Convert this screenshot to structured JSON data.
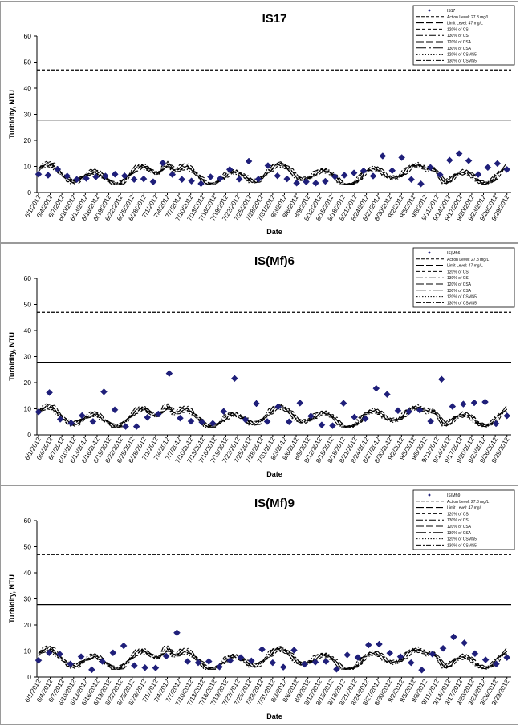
{
  "chart_data": [
    {
      "type": "line",
      "title": "IS17",
      "xlabel": "Date",
      "ylabel": "Turbidity, NTU",
      "ylim": [
        0,
        60
      ],
      "yticks": [
        "0",
        "10",
        "20",
        "30",
        "40",
        "50",
        "60"
      ],
      "grid": false,
      "legend_position": "top-right",
      "x_dates": [
        "6/1/2012",
        "6/4/2012",
        "6/7/2012",
        "6/10/2012",
        "6/13/2012",
        "6/16/2012",
        "6/19/2012",
        "6/22/2012",
        "6/25/2012",
        "6/28/2012",
        "7/1/2012",
        "7/4/2012",
        "7/7/2012",
        "7/10/2012",
        "7/13/2012",
        "7/16/2012",
        "7/19/2012",
        "7/22/2012",
        "7/25/2012",
        "7/28/2012",
        "7/31/2012",
        "8/3/2012",
        "8/6/2012",
        "8/9/2012",
        "8/12/2012",
        "8/15/2012",
        "8/18/2012",
        "8/21/2012",
        "8/24/2012",
        "8/27/2012",
        "8/30/2012",
        "9/2/2012",
        "9/5/2012",
        "9/8/2012",
        "9/11/2012",
        "9/14/2012",
        "9/17/2012",
        "9/20/2012",
        "9/23/2012",
        "9/26/2012",
        "9/29/2012"
      ],
      "legend": [
        "IS17",
        "Action Level: 27.8 mg/L",
        "Limit Level: 47 mg/L",
        "120% of CS",
        "130% of CS",
        "120% of CSA",
        "130% of CSA",
        "120% of CSMS5",
        "130% of CSMS5"
      ],
      "action_level": 27.8,
      "limit_level": 47,
      "points": [
        7,
        6.6,
        8.9,
        6.3,
        5,
        5.4,
        6,
        6.3,
        7,
        6.4,
        5,
        5.2,
        4.1,
        11.3,
        6.9,
        5,
        4.4,
        3.4,
        6,
        5.3,
        8.8,
        5.1,
        12,
        5.1,
        10.3,
        6.4,
        5.2,
        3.6,
        4.1,
        3.6,
        4.3,
        6.1,
        6.6,
        7.5,
        8.3,
        6.3,
        14,
        8.4,
        13.4,
        5,
        3.3,
        9.6,
        6.8,
        12.4,
        14.9,
        12.2,
        6.9,
        9.6,
        11.1,
        8.8
      ]
    },
    {
      "type": "line",
      "title": "IS(Mf)6",
      "xlabel": "Date",
      "ylabel": "Turbidity, NTU",
      "ylim": [
        0,
        60
      ],
      "yticks": [
        "0",
        "10",
        "20",
        "30",
        "40",
        "50",
        "60"
      ],
      "grid": false,
      "legend_position": "top-right",
      "x_dates": [
        "6/1/2012",
        "6/4/2012",
        "6/7/2012",
        "6/10/2012",
        "6/13/2012",
        "6/16/2012",
        "6/19/2012",
        "6/22/2012",
        "6/25/2012",
        "6/28/2012",
        "7/1/2012",
        "7/4/2012",
        "7/7/2012",
        "7/10/2012",
        "7/13/2012",
        "7/16/2012",
        "7/19/2012",
        "7/22/2012",
        "7/25/2012",
        "7/28/2012",
        "7/31/2012",
        "8/3/2012",
        "8/6/2012",
        "8/9/2012",
        "8/12/2012",
        "8/15/2012",
        "8/18/2012",
        "8/21/2012",
        "8/24/2012",
        "8/27/2012",
        "8/30/2012",
        "9/2/2012",
        "9/5/2012",
        "9/8/2012",
        "9/11/2012",
        "9/14/2012",
        "9/17/2012",
        "9/20/2012",
        "9/23/2012",
        "9/26/2012",
        "9/29/2012"
      ],
      "legend": [
        "IS(Mf)6",
        "Action Level: 27.8 mg/L",
        "Limit Level: 47 mg/L",
        "120% of CS",
        "130% of CS",
        "120% of CSA",
        "130% of CSA",
        "120% of CSMS5",
        "130% of CSMS5"
      ],
      "action_level": 27.8,
      "limit_level": 47,
      "points": [
        8.8,
        16.2,
        6,
        4.5,
        7.4,
        5.1,
        16.5,
        9.6,
        3.2,
        3.2,
        6.7,
        8,
        23.5,
        6.4,
        5.2,
        4.9,
        4.4,
        9,
        21.6,
        5.8,
        12,
        5.1,
        10.8,
        5,
        12.2,
        7.2,
        3.8,
        3.5,
        12.1,
        6.8,
        6.2,
        17.8,
        15.5,
        9.3,
        8.9,
        9.5,
        5.2,
        21.3,
        10.9,
        11.8,
        12.3,
        12.6,
        4.3,
        7.3
      ]
    },
    {
      "type": "line",
      "title": "IS(Mf)9",
      "xlabel": "Date",
      "ylabel": "Turbidity, NTU",
      "ylim": [
        0,
        60
      ],
      "yticks": [
        "0",
        "10",
        "20",
        "30",
        "40",
        "50",
        "60"
      ],
      "grid": false,
      "legend_position": "top-right",
      "x_dates": [
        "6/1/2012",
        "6/4/2012",
        "6/7/2012",
        "6/10/2012",
        "6/13/2012",
        "6/16/2012",
        "6/19/2012",
        "6/22/2012",
        "6/25/2012",
        "6/28/2012",
        "7/1/2012",
        "7/4/2012",
        "7/7/2012",
        "7/10/2012",
        "7/13/2012",
        "7/16/2012",
        "7/19/2012",
        "7/22/2012",
        "7/25/2012",
        "7/28/2012",
        "7/31/2012",
        "8/3/2012",
        "8/6/2012",
        "8/9/2012",
        "8/12/2012",
        "8/15/2012",
        "8/18/2012",
        "8/21/2012",
        "8/24/2012",
        "8/27/2012",
        "8/30/2012",
        "9/2/2012",
        "9/5/2012",
        "9/8/2012",
        "9/11/2012",
        "9/14/2012",
        "9/17/2012",
        "9/20/2012",
        "9/23/2012",
        "9/26/2012",
        "9/29/2012"
      ],
      "legend": [
        "IS(Mf)9",
        "Action Level: 27.8 mg/L",
        "Limit Level: 47 mg/L",
        "120% of CS",
        "130% of CS",
        "120% of CSA",
        "130% of CSA",
        "120% of CSMS5",
        "130% of CSMS5"
      ],
      "action_level": 27.8,
      "limit_level": 47,
      "points": [
        6.4,
        9.3,
        8.8,
        5,
        7.8,
        2.8,
        6,
        9.3,
        12,
        4.4,
        3.6,
        3.5,
        8,
        17,
        6,
        5.5,
        6,
        3.9,
        6.3,
        7.5,
        6.2,
        10.6,
        5.5,
        3.8,
        10.3,
        4.9,
        5.7,
        6,
        3,
        8.5,
        7.5,
        12.3,
        12.6,
        9.2,
        7.8,
        5.5,
        2.7,
        8.8,
        11,
        15.4,
        13.1,
        9,
        6.6,
        5,
        7.5
      ]
    }
  ]
}
